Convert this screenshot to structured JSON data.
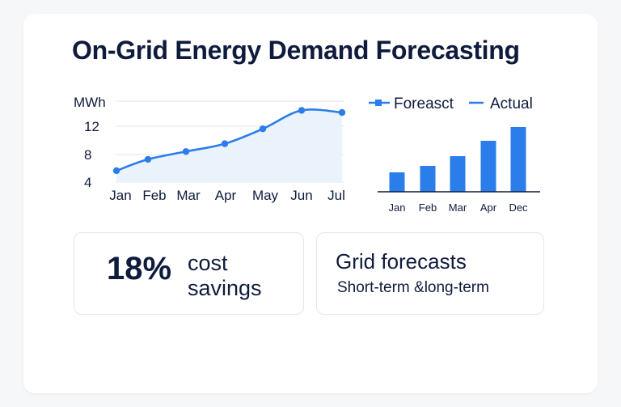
{
  "title": "On-Grid Energy Demand Forecasting",
  "chart_data": [
    {
      "type": "line",
      "ylabel": "MWh",
      "categories": [
        "Jan",
        "Feb",
        "Mar",
        "Apr",
        "May",
        "Jun",
        "Jul"
      ],
      "yticks": [
        "12",
        "8",
        "4"
      ],
      "ylim": [
        4,
        15.4
      ],
      "series": [
        {
          "values": [
            5.6,
            7.2,
            8.3,
            9.4,
            11.5,
            14.1,
            13.8
          ]
        }
      ],
      "color": "#2b7de9",
      "fill": "#eaf2fc",
      "grid": true
    },
    {
      "type": "bar",
      "categories": [
        "Jan",
        "Feb",
        "Mar",
        "Apr",
        "Dec"
      ],
      "values": [
        2.4,
        3.2,
        4.4,
        6.3,
        8.0
      ],
      "legend": [
        "Foreasct",
        "Actual"
      ],
      "legend_position": "top",
      "color": "#2b7de9"
    }
  ],
  "stats": {
    "value": "18%",
    "label": "cost savings"
  },
  "feature": {
    "title": "Grid forecasts",
    "subtitle": "Short-term &long-term"
  }
}
